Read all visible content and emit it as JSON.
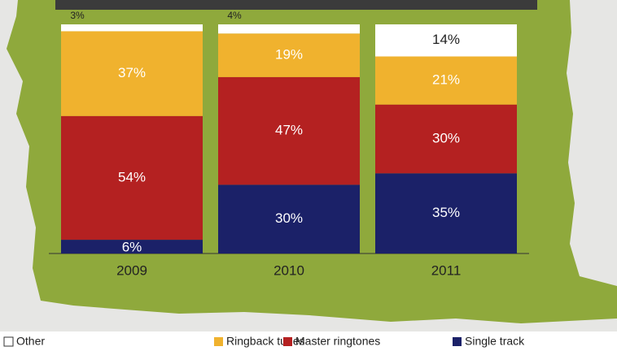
{
  "chart_data": {
    "type": "bar",
    "stacked": true,
    "categories": [
      "2009",
      "2010",
      "2011"
    ],
    "ylim": [
      0,
      100
    ],
    "series": [
      {
        "name": "Single track",
        "color": "#1b2168",
        "values": [
          6,
          30,
          35
        ],
        "value_labels": [
          "6%",
          "30%",
          "35%"
        ]
      },
      {
        "name": "Master ringtones",
        "color": "#b42121",
        "values": [
          54,
          47,
          30
        ],
        "value_labels": [
          "54%",
          "47%",
          "30%"
        ]
      },
      {
        "name": "Ringback tunes",
        "color": "#f0b22e",
        "values": [
          37,
          19,
          21
        ],
        "value_labels": [
          "37%",
          "19%",
          "21%"
        ]
      },
      {
        "name": "Other",
        "color": "#ffffff",
        "values": [
          3,
          4,
          14
        ],
        "value_labels": [
          "3%",
          "4%",
          "14%"
        ]
      }
    ],
    "legend_order": [
      "Other",
      "Ringback tunes",
      "Master ringtones",
      "Single track"
    ]
  }
}
